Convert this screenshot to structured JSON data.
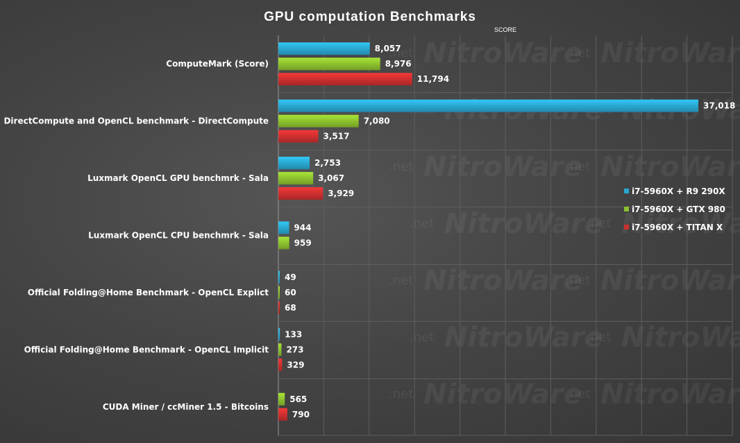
{
  "chart_data": {
    "type": "bar",
    "orientation": "horizontal",
    "title": "GPU computation  Benchmarks",
    "xlabel": "SCORE",
    "ylabel": "",
    "xlim": [
      0,
      37018
    ],
    "grid": "vertical",
    "legend_position": "right",
    "watermark": "NitroWare.net",
    "categories": [
      "ComputeMark (Score)",
      "DirectCompute and OpenCL benchmark - DirectCompute",
      "Luxmark OpenCL GPU benchmrk - Sala",
      "Luxmark OpenCL CPU benchmrk - Sala",
      "Official Folding@Home Benchmark - OpenCL Explict",
      "Official Folding@Home Benchmark - OpenCL Implicit",
      "CUDA Miner / ccMiner 1.5 - Bitcoins"
    ],
    "series": [
      {
        "name": "i7-5960X + R9 290X",
        "color": "#2aa7cf",
        "values": [
          8057,
          37018,
          2753,
          944,
          49,
          133,
          null
        ],
        "labels": [
          "8,057",
          "37,018",
          "2,753",
          "944",
          "49",
          "133",
          ""
        ]
      },
      {
        "name": "i7-5960X + GTX 980",
        "color": "#8cbf2e",
        "values": [
          8976,
          7080,
          3067,
          959,
          60,
          273,
          565
        ],
        "labels": [
          "8,976",
          "7,080",
          "3,067",
          "959",
          "60",
          "273",
          "565"
        ]
      },
      {
        "name": "i7-5960X + TITAN X",
        "color": "#cc2f2f",
        "values": [
          11794,
          3517,
          3929,
          null,
          68,
          329,
          790
        ],
        "labels": [
          "11,794",
          "3,517",
          "3,929",
          "",
          "68",
          "329",
          "790"
        ]
      }
    ]
  }
}
